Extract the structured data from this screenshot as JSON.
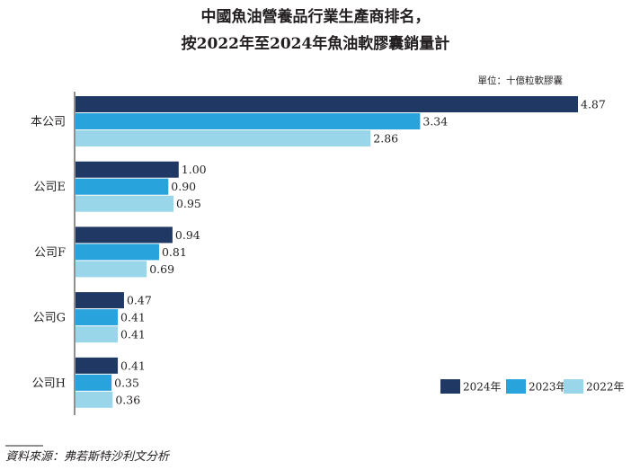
{
  "chart_data": {
    "type": "bar",
    "orientation": "horizontal",
    "title_line1": "中國魚油營養品行業生產商排名，",
    "title_line2": "按2022年至2024年魚油軟膠囊銷量計",
    "unit_label": "單位：十億粒軟膠囊",
    "categories": [
      "本公司",
      "公司E",
      "公司F",
      "公司G",
      "公司H"
    ],
    "series": [
      {
        "name": "2024年",
        "color": "#1f3864",
        "values": [
          4.87,
          1.0,
          0.94,
          0.47,
          0.41
        ],
        "labels": [
          "4.87",
          "1.00",
          "0.94",
          "0.47",
          "0.41"
        ]
      },
      {
        "name": "2023年",
        "color": "#29a3dc",
        "values": [
          3.34,
          0.9,
          0.81,
          0.41,
          0.35
        ],
        "labels": [
          "3.34",
          "0.90",
          "0.81",
          "0.41",
          "0.35"
        ]
      },
      {
        "name": "2022年",
        "color": "#99d6e9",
        "values": [
          2.86,
          0.95,
          0.69,
          0.41,
          0.36
        ],
        "labels": [
          "2.86",
          "0.95",
          "0.69",
          "0.41",
          "0.36"
        ]
      }
    ],
    "xlim": [
      0,
      5
    ],
    "legend_position": "bottom-right",
    "source": "資料來源：弗若斯特沙利文分析"
  }
}
